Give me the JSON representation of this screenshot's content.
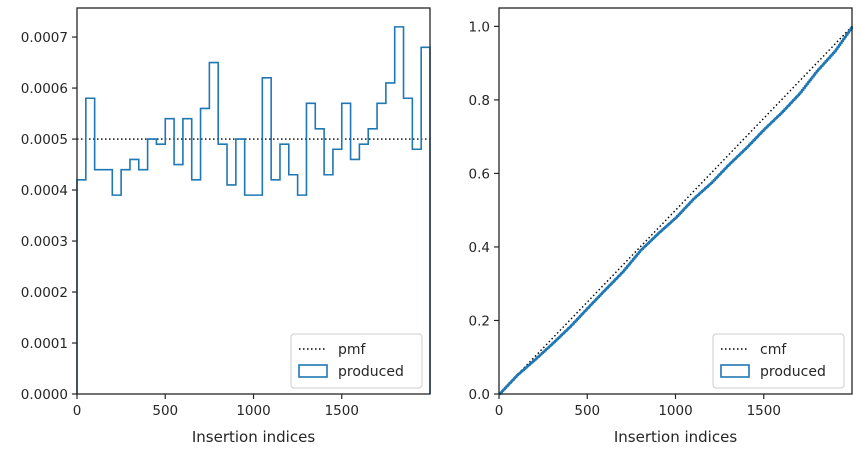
{
  "chart_data": [
    {
      "type": "histogram-step",
      "xlabel": "Insertion indices",
      "ylabel": "",
      "xlim": [
        0,
        2000
      ],
      "ylim": [
        0,
        0.000757
      ],
      "xticks": [
        0,
        500,
        1000,
        1500
      ],
      "xtick_labels": [
        "0",
        "500",
        "1000",
        "1500"
      ],
      "yticks": [
        0,
        0.0001,
        0.0002,
        0.0003,
        0.0004,
        0.0005,
        0.0006,
        0.0007
      ],
      "ytick_labels": [
        "0.0000",
        "0.0001",
        "0.0002",
        "0.0003",
        "0.0004",
        "0.0005",
        "0.0006",
        "0.0007"
      ],
      "reference": {
        "name": "pmf",
        "value": 0.0005,
        "style": "dotted",
        "color": "#000000"
      },
      "series": [
        {
          "name": "produced",
          "color": "#1f77b4",
          "bin_edges": [
            0,
            50,
            100,
            150,
            200,
            250,
            300,
            350,
            400,
            450,
            500,
            550,
            600,
            650,
            700,
            750,
            800,
            850,
            900,
            950,
            1000,
            1050,
            1100,
            1150,
            1200,
            1250,
            1300,
            1350,
            1400,
            1450,
            1500,
            1550,
            1600,
            1650,
            1700,
            1750,
            1800,
            1850,
            1900,
            1950,
            2000
          ],
          "values": [
            0.00042,
            0.00058,
            0.00044,
            0.00044,
            0.00039,
            0.00044,
            0.00046,
            0.00044,
            0.0005,
            0.00049,
            0.00054,
            0.00045,
            0.00054,
            0.00042,
            0.00056,
            0.00065,
            0.00049,
            0.00041,
            0.0005,
            0.00039,
            0.00039,
            0.00062,
            0.00042,
            0.00049,
            0.00043,
            0.00039,
            0.00057,
            0.00052,
            0.00043,
            0.00048,
            0.00057,
            0.00046,
            0.00049,
            0.00052,
            0.00057,
            0.00061,
            0.00072,
            0.00058,
            0.00048,
            0.00068
          ]
        }
      ],
      "legend_position": "lower-right",
      "grid": false
    },
    {
      "type": "line",
      "xlabel": "Insertion indices",
      "ylabel": "",
      "xlim": [
        0,
        2000
      ],
      "ylim": [
        0,
        1.05
      ],
      "xticks": [
        0,
        500,
        1000,
        1500
      ],
      "xtick_labels": [
        "0",
        "500",
        "1000",
        "1500"
      ],
      "yticks": [
        0,
        0.2,
        0.4,
        0.6,
        0.8,
        1.0
      ],
      "ytick_labels": [
        "0.0",
        "0.2",
        "0.4",
        "0.6",
        "0.8",
        "1.0"
      ],
      "reference": {
        "name": "cmf",
        "x": [
          0,
          2000
        ],
        "y": [
          0,
          1.0
        ],
        "style": "dotted",
        "color": "#000000"
      },
      "series": [
        {
          "name": "produced",
          "color": "#1f77b4",
          "x": [
            0,
            100,
            200,
            300,
            400,
            500,
            600,
            700,
            800,
            900,
            1000,
            1100,
            1200,
            1300,
            1400,
            1500,
            1600,
            1700,
            1800,
            1900,
            2000
          ],
          "y": [
            0,
            0.051,
            0.093,
            0.137,
            0.183,
            0.234,
            0.284,
            0.333,
            0.391,
            0.437,
            0.48,
            0.531,
            0.574,
            0.624,
            0.67,
            0.72,
            0.766,
            0.817,
            0.879,
            0.932,
            1.0
          ]
        }
      ],
      "legend_position": "lower-right",
      "grid": false
    }
  ]
}
